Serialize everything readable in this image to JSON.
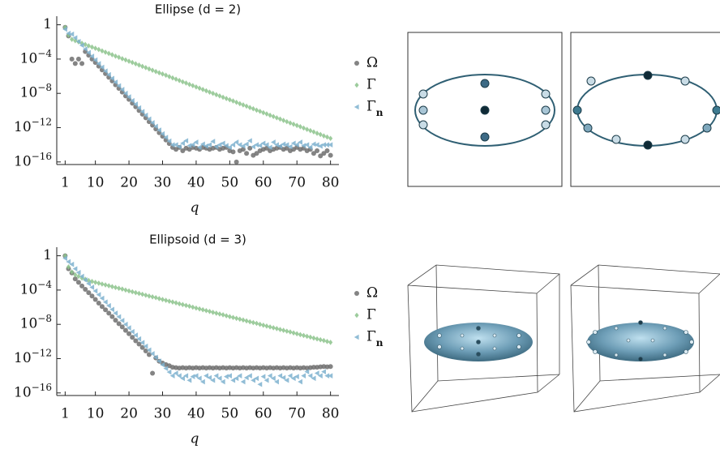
{
  "chart_data": [
    {
      "type": "scatter",
      "title": "Ellipse (d = 2)",
      "xlabel": "q",
      "yscale": "log",
      "xlim": [
        -1.5,
        82.5
      ],
      "ylim": [
        5e-17,
        10
      ],
      "xticks": [
        1,
        10,
        20,
        30,
        40,
        50,
        60,
        70,
        80
      ],
      "yticks": [
        1,
        {
          "value": 0.0001,
          "label": "10−4"
        },
        {
          "value": 1e-08,
          "label": "10−8"
        },
        {
          "value": 1e-12,
          "label": "10−12"
        },
        {
          "value": 1e-16,
          "label": "10−16"
        }
      ],
      "x": [
        1,
        2,
        3,
        4,
        5,
        6,
        7,
        8,
        9,
        10,
        11,
        12,
        13,
        14,
        15,
        16,
        17,
        18,
        19,
        20,
        21,
        22,
        23,
        24,
        25,
        26,
        27,
        28,
        29,
        30,
        31,
        32,
        33,
        34,
        35,
        36,
        37,
        38,
        39,
        40,
        41,
        42,
        43,
        44,
        45,
        46,
        47,
        48,
        49,
        50,
        51,
        52,
        53,
        54,
        55,
        56,
        57,
        58,
        59,
        60,
        61,
        62,
        63,
        64,
        65,
        66,
        67,
        68,
        69,
        70,
        71,
        72,
        73,
        74,
        75,
        76,
        77,
        78,
        79,
        80
      ],
      "series": [
        {
          "name": "Ω",
          "color": "#6f6f6f",
          "marker": "circle",
          "values": [
            0.5,
            0.05,
            0.0001,
            3e-05,
            0.0001,
            3e-05,
            0.00075,
            0.00028,
            0.0001,
            4e-05,
            1.5e-05,
            5.5e-06,
            2e-06,
            7.5e-07,
            2.8e-07,
            1e-07,
            3.8e-08,
            1.4e-08,
            5e-09,
            2e-09,
            7e-10,
            2.7e-10,
            1e-10,
            3.7e-11,
            1.4e-11,
            5e-12,
            1.9e-12,
            7e-13,
            2.6e-13,
            1e-13,
            3.6e-14,
            1.4e-14,
            5e-15,
            3e-15,
            5e-15,
            2e-15,
            4e-15,
            3e-15,
            5e-15,
            4e-15,
            3e-15,
            5e-15,
            4e-15,
            3e-15,
            4e-15,
            5e-15,
            3e-15,
            4e-15,
            5e-15,
            2e-15,
            1.5e-15,
            1e-16,
            2e-15,
            3e-15,
            1e-15,
            4e-15,
            6e-16,
            1e-15,
            2e-15,
            3e-15,
            4e-15,
            2e-15,
            3e-15,
            4e-15,
            5e-15,
            3e-15,
            4e-15,
            2e-15,
            3e-15,
            5e-15,
            3e-15,
            4e-15,
            2e-15,
            3e-15,
            1e-15,
            2e-15,
            5e-16,
            1e-15,
            2e-15,
            6e-16
          ]
        },
        {
          "name": "Γ",
          "color": "#8cc38c",
          "marker": "diamond",
          "values": [
            0.5,
            0.06,
            0.02,
            0.014,
            0.01,
            0.007,
            0.005,
            0.0035,
            0.0025,
            0.0018,
            0.0013,
            0.0009,
            0.00063,
            0.00045,
            0.00032,
            0.00022,
            0.00016,
            0.00011,
            8e-05,
            5.6e-05,
            4e-05,
            2.8e-05,
            2e-05,
            1.4e-05,
            1e-05,
            7e-06,
            5e-06,
            3.5e-06,
            2.5e-06,
            1.8e-06,
            1.3e-06,
            9e-07,
            6.3e-07,
            4.5e-07,
            3.2e-07,
            2.2e-07,
            1.6e-07,
            1.1e-07,
            8e-08,
            5.6e-08,
            4e-08,
            2.8e-08,
            2e-08,
            1.4e-08,
            1e-08,
            7e-09,
            5e-09,
            3.5e-09,
            2.5e-09,
            1.8e-09,
            1.3e-09,
            9e-10,
            6.3e-10,
            4.5e-10,
            3.2e-10,
            2.2e-10,
            1.6e-10,
            1.1e-10,
            8e-11,
            5.6e-11,
            4e-11,
            2.8e-11,
            2e-11,
            1.4e-11,
            1e-11,
            7e-12,
            5e-12,
            3.5e-12,
            2.5e-12,
            1.8e-12,
            1.3e-12,
            9e-13,
            6.3e-13,
            4.5e-13,
            3.2e-13,
            2.2e-13,
            1.6e-13,
            1.1e-13,
            8e-14,
            5.6e-14
          ]
        },
        {
          "name": "Γn",
          "color": "#7eb1cf",
          "marker": "triangle-left",
          "values": [
            0.3,
            0.1,
            0.08,
            0.03,
            0.011,
            0.004,
            0.0015,
            0.00056,
            0.00021,
            7.8e-05,
            2.9e-05,
            1.1e-05,
            4e-06,
            1.5e-06,
            5.5e-07,
            2e-07,
            7.6e-08,
            2.8e-08,
            1e-08,
            3.9e-09,
            1.4e-09,
            5.4e-10,
            2e-10,
            7.4e-11,
            2.8e-11,
            1e-11,
            3.8e-12,
            1.4e-12,
            5.2e-13,
            1.9e-13,
            7.2e-14,
            2.7e-14,
            1e-14,
            1e-14,
            6e-15,
            1.5e-14,
            3e-14,
            8e-15,
            1e-14,
            2e-14,
            5e-15,
            1.2e-14,
            7e-15,
            1e-14,
            2.5e-14,
            6e-15,
            1e-14,
            1.5e-14,
            8e-15,
            5e-15,
            1e-14,
            2e-14,
            1e-14,
            7e-15,
            1.2e-14,
            3e-14,
            6e-15,
            1e-14,
            8e-15,
            1.5e-14,
            1e-14,
            5e-15,
            2e-14,
            1e-14,
            7e-15,
            1.2e-14,
            1e-14,
            6e-15,
            1.5e-14,
            1e-14,
            2e-14,
            8e-15,
            1e-14,
            5e-15,
            1.2e-14,
            1e-14,
            7e-15,
            1e-14,
            1e-14,
            1e-14
          ]
        }
      ]
    },
    {
      "type": "scatter",
      "title": "Ellipsoid (d = 3)",
      "xlabel": "q",
      "yscale": "log",
      "xlim": [
        -1.5,
        82.5
      ],
      "ylim": [
        5e-17,
        10
      ],
      "xticks": [
        1,
        10,
        20,
        30,
        40,
        50,
        60,
        70,
        80
      ],
      "yticks": [
        1,
        {
          "value": 0.0001,
          "label": "10−4"
        },
        {
          "value": 1e-08,
          "label": "10−8"
        },
        {
          "value": 1e-12,
          "label": "10−12"
        },
        {
          "value": 1e-16,
          "label": "10−16"
        }
      ],
      "x": [
        1,
        2,
        3,
        4,
        5,
        6,
        7,
        8,
        9,
        10,
        11,
        12,
        13,
        14,
        15,
        16,
        17,
        18,
        19,
        20,
        21,
        22,
        23,
        24,
        25,
        26,
        27,
        28,
        29,
        30,
        31,
        32,
        33,
        34,
        35,
        36,
        37,
        38,
        39,
        40,
        41,
        42,
        43,
        44,
        45,
        46,
        47,
        48,
        49,
        50,
        51,
        52,
        53,
        54,
        55,
        56,
        57,
        58,
        59,
        60,
        61,
        62,
        63,
        64,
        65,
        66,
        67,
        68,
        69,
        70,
        71,
        72,
        73,
        74,
        75,
        76,
        77,
        78,
        79,
        80
      ],
      "series": [
        {
          "name": "Ω",
          "color": "#6f6f6f",
          "marker": "circle",
          "values": [
            1,
            0.03,
            0.01,
            0.002,
            0.0008,
            0.0003,
            0.00012,
            5e-05,
            2e-05,
            8e-06,
            3e-06,
            1.2e-06,
            5e-07,
            2e-07,
            8e-08,
            3e-08,
            1.2e-08,
            5e-09,
            2e-09,
            8e-10,
            3e-10,
            1.2e-10,
            5e-11,
            2e-11,
            8e-12,
            3e-12,
            2e-14,
            1.2e-12,
            5e-13,
            3e-13,
            2e-13,
            1.5e-13,
            1e-13,
            9e-14,
            8e-14,
            9e-14,
            8e-14,
            9e-14,
            8e-14,
            9e-14,
            8e-14,
            9e-14,
            8e-14,
            9e-14,
            8e-14,
            9e-14,
            8e-14,
            9e-14,
            8e-14,
            9e-14,
            8e-14,
            9e-14,
            8e-14,
            9e-14,
            8e-14,
            9e-14,
            8e-14,
            9e-14,
            8e-14,
            9e-14,
            8e-14,
            9e-14,
            8e-14,
            9e-14,
            8e-14,
            9e-14,
            8e-14,
            9e-14,
            8e-14,
            9e-14,
            8e-14,
            9e-14,
            8e-14,
            9e-14,
            1e-13,
            1e-13,
            1.1e-13,
            1.2e-13,
            1.1e-13,
            1.2e-13
          ]
        },
        {
          "name": "Γ",
          "color": "#8cc38c",
          "marker": "diamond",
          "values": [
            1,
            0.05,
            0.013,
            0.006,
            0.004,
            0.0025,
            0.0018,
            0.0013,
            0.001,
            0.00079,
            0.00063,
            0.0005,
            0.0004,
            0.00032,
            0.00025,
            0.0002,
            0.00016,
            0.00013,
            0.0001,
            7.9e-05,
            6.3e-05,
            5e-05,
            4e-05,
            3.2e-05,
            2.5e-05,
            2e-05,
            1.6e-05,
            1.3e-05,
            1e-05,
            7.9e-06,
            6.3e-06,
            5e-06,
            4e-06,
            3.2e-06,
            2.5e-06,
            2e-06,
            1.6e-06,
            1.3e-06,
            1e-06,
            7.9e-07,
            6.3e-07,
            5e-07,
            4e-07,
            3.2e-07,
            2.5e-07,
            2e-07,
            1.6e-07,
            1.3e-07,
            1e-07,
            7.9e-08,
            6.3e-08,
            5e-08,
            4e-08,
            3.2e-08,
            2.5e-08,
            2e-08,
            1.6e-08,
            1.3e-08,
            1e-08,
            7.9e-09,
            6.3e-09,
            5e-09,
            4e-09,
            3.2e-09,
            2.5e-09,
            2e-09,
            1.6e-09,
            1.3e-09,
            1e-09,
            7.9e-10,
            6.3e-10,
            5e-10,
            4e-10,
            3.2e-10,
            2.5e-10,
            2e-10,
            1.6e-10,
            1.3e-10,
            1e-10,
            7.9e-11
          ]
        },
        {
          "name": "Γn",
          "color": "#7eb1cf",
          "marker": "triangle-left",
          "values": [
            0.5,
            0.2,
            0.1,
            0.03,
            0.011,
            0.004,
            0.0015,
            0.00056,
            0.00021,
            7.8e-05,
            2.9e-05,
            1.1e-05,
            4e-06,
            1.5e-06,
            5.5e-07,
            2e-07,
            7.6e-08,
            2.8e-08,
            1e-08,
            3.9e-09,
            1.4e-09,
            5.4e-10,
            2e-10,
            7.4e-11,
            2.8e-11,
            1e-11,
            3.8e-12,
            1.4e-12,
            5.2e-13,
            1.9e-13,
            7.2e-14,
            2.7e-14,
            1e-14,
            2e-14,
            1e-14,
            5e-15,
            1e-14,
            3e-15,
            8e-15,
            1e-14,
            5e-15,
            2e-15,
            1e-14,
            6e-15,
            3e-15,
            1e-14,
            5e-15,
            2e-15,
            8e-15,
            1e-14,
            3e-15,
            5e-15,
            1e-14,
            2e-15,
            6e-15,
            1e-14,
            3e-15,
            5e-15,
            1e-15,
            8e-15,
            3e-15,
            1e-14,
            5e-15,
            2e-15,
            1e-14,
            6e-15,
            3e-15,
            1e-14,
            5e-15,
            8e-15,
            2e-15,
            1e-14,
            3e-14,
            1e-14,
            5e-15,
            2e-14,
            1e-14,
            3e-14,
            1e-14,
            1e-14
          ]
        }
      ]
    }
  ]
}
